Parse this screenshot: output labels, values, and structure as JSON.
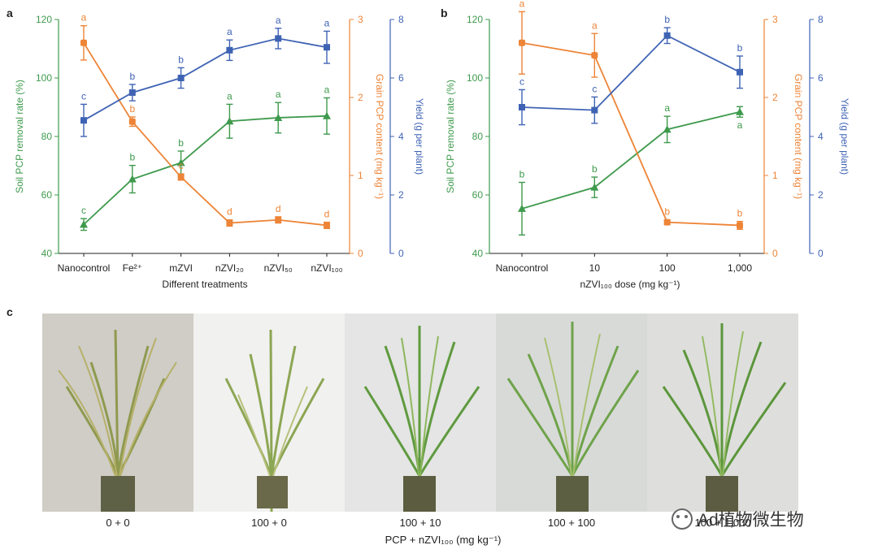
{
  "panels": {
    "a": "a",
    "b": "b",
    "c": "c"
  },
  "colors": {
    "green": "#3e9a4c",
    "orange": "#ed8437",
    "blue": "#3f63b4"
  },
  "chart_data": [
    {
      "panel": "a",
      "type": "line",
      "xlabel": "Different treatments",
      "categories": [
        "Nanocontrol",
        "Fe²⁺",
        "mZVI",
        "nZVI₂₀",
        "nZVI₅₀",
        "nZVI₁₀₀"
      ],
      "axes": {
        "left": {
          "label": "Soil PCP removal rate (%)",
          "lim": [
            40,
            120
          ],
          "ticks": [
            40,
            60,
            80,
            100,
            120
          ]
        },
        "right1": {
          "label": "Grain PCP content (mg kg⁻¹)",
          "lim": [
            0,
            3
          ],
          "ticks": [
            0,
            1,
            2,
            3
          ]
        },
        "right2": {
          "label": "Yield (g per plant)",
          "lim": [
            0,
            8
          ],
          "ticks": [
            0,
            2,
            4,
            6,
            8
          ]
        }
      },
      "series": [
        {
          "name": "Soil PCP removal rate",
          "axis": "left",
          "color": "green",
          "marker": "triangle",
          "values": [
            49.9,
            65.4,
            71.0,
            85.2,
            86.4,
            87.0
          ],
          "errors": [
            2.0,
            4.7,
            4.0,
            5.8,
            5.2,
            6.2
          ],
          "letters": [
            "c",
            "b",
            "b",
            "a",
            "a",
            "a"
          ]
        },
        {
          "name": "Grain PCP content",
          "axis": "right1",
          "color": "orange",
          "marker": "circle",
          "values": [
            2.7,
            1.69,
            0.98,
            0.39,
            0.43,
            0.36
          ],
          "errors": [
            0.22,
            0.06,
            0.04,
            0.04,
            0.04,
            0.04
          ],
          "letters": [
            "a",
            "b",
            "c",
            "d",
            "d",
            "d"
          ]
        },
        {
          "name": "Yield",
          "axis": "right2",
          "color": "blue",
          "marker": "square",
          "values": [
            4.55,
            5.5,
            6.0,
            6.95,
            7.35,
            7.05
          ],
          "errors": [
            0.55,
            0.28,
            0.35,
            0.35,
            0.35,
            0.55
          ],
          "letters": [
            "c",
            "b",
            "b",
            "a",
            "a",
            "a"
          ]
        }
      ]
    },
    {
      "panel": "b",
      "type": "line",
      "xlabel": "nZVI₁₀₀ dose (mg kg⁻¹)",
      "categories": [
        "Nanocontrol",
        "10",
        "100",
        "1,000"
      ],
      "axes": {
        "left": {
          "label": "Soil PCP removal rate (%)",
          "lim": [
            40,
            120
          ],
          "ticks": [
            40,
            60,
            80,
            100,
            120
          ]
        },
        "right1": {
          "label": "Grain PCP content (mg kg⁻¹)",
          "lim": [
            0,
            3
          ],
          "ticks": [
            0,
            1,
            2,
            3
          ]
        },
        "right2": {
          "label": "Yield (g per plant)",
          "lim": [
            0,
            8
          ],
          "ticks": [
            0,
            2,
            4,
            6,
            8
          ]
        }
      },
      "series": [
        {
          "name": "Soil PCP removal rate",
          "axis": "left",
          "color": "green",
          "marker": "triangle",
          "values": [
            55.3,
            62.6,
            82.4,
            88.4
          ],
          "errors": [
            9.0,
            3.5,
            4.5,
            1.8
          ],
          "letters": [
            "b",
            "b",
            "a",
            "a"
          ],
          "letter_below": [
            false,
            false,
            false,
            true
          ]
        },
        {
          "name": "Grain PCP content",
          "axis": "right1",
          "color": "orange",
          "marker": "circle",
          "values": [
            2.7,
            2.54,
            0.4,
            0.36
          ],
          "errors": [
            0.4,
            0.28,
            0.03,
            0.05
          ],
          "letters": [
            "a",
            "a",
            "b",
            "b"
          ]
        },
        {
          "name": "Yield",
          "axis": "right2",
          "color": "blue",
          "marker": "square",
          "values": [
            5.0,
            4.9,
            7.45,
            6.2
          ],
          "errors": [
            0.6,
            0.45,
            0.27,
            0.55
          ],
          "letters": [
            "c",
            "c",
            "b",
            "b"
          ]
        }
      ]
    }
  ],
  "photos": {
    "caption": "PCP + nZVI₁₀₀ (mg kg⁻¹)",
    "labels": [
      "0 + 0",
      "100 + 0",
      "100 + 10",
      "100 + 100",
      "100 + 1,000"
    ]
  },
  "watermark": {
    "text": "Ad植物微生物"
  }
}
